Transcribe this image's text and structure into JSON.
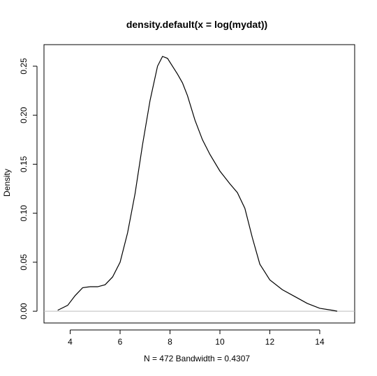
{
  "chart_data": {
    "type": "line",
    "title": "density.default(x = log(mydat))",
    "xlabel": "N = 472   Bandwidth = 0.4307",
    "ylabel": "Density",
    "xlim": [
      2.95,
      15.4
    ],
    "ylim": [
      -0.012,
      0.272
    ],
    "xticks": [
      4,
      6,
      8,
      10,
      12,
      14
    ],
    "yticks": [
      0.0,
      0.05,
      0.1,
      0.15,
      0.2,
      0.25
    ],
    "xtick_labels": [
      "4",
      "6",
      "8",
      "10",
      "12",
      "14"
    ],
    "ytick_labels": [
      "0.00",
      "0.05",
      "0.10",
      "0.15",
      "0.20",
      "0.25"
    ],
    "baseline": 0,
    "grid": false,
    "series": [
      {
        "x": [
          3.5,
          3.9,
          4.2,
          4.5,
          4.8,
          5.1,
          5.4,
          5.7,
          6.0,
          6.3,
          6.6,
          6.9,
          7.2,
          7.5,
          7.7,
          7.9,
          8.1,
          8.3,
          8.5,
          8.7,
          9.0,
          9.3,
          9.6,
          10.0,
          10.4,
          10.7,
          11.0,
          11.3,
          11.6,
          12.0,
          12.5,
          13.0,
          13.5,
          14.0,
          14.5,
          14.7
        ],
        "y": [
          0.001,
          0.006,
          0.016,
          0.024,
          0.025,
          0.025,
          0.027,
          0.035,
          0.05,
          0.08,
          0.12,
          0.17,
          0.215,
          0.25,
          0.26,
          0.258,
          0.25,
          0.242,
          0.233,
          0.22,
          0.195,
          0.175,
          0.16,
          0.143,
          0.13,
          0.121,
          0.105,
          0.075,
          0.048,
          0.032,
          0.022,
          0.015,
          0.008,
          0.003,
          0.001,
          0.0
        ]
      }
    ]
  }
}
